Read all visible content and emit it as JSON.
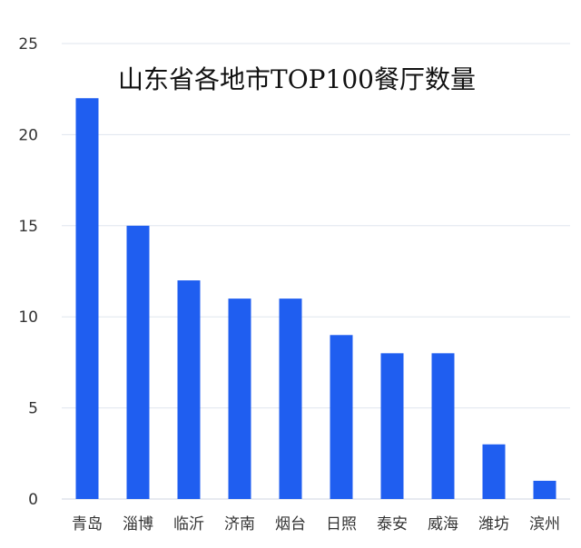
{
  "chart_data": {
    "type": "bar",
    "title": "山东省各地市TOP100餐厅数量",
    "categories": [
      "青岛",
      "淄博",
      "临沂",
      "济南",
      "烟台",
      "日照",
      "泰安",
      "威海",
      "潍坊",
      "滨州"
    ],
    "values": [
      22,
      15,
      12,
      11,
      11,
      9,
      8,
      8,
      3,
      1
    ],
    "ylim": [
      0,
      25
    ],
    "yticks": [
      0,
      5,
      10,
      15,
      20,
      25
    ],
    "grid": true,
    "legend": "none",
    "bar_color": "#1f5ef0"
  }
}
